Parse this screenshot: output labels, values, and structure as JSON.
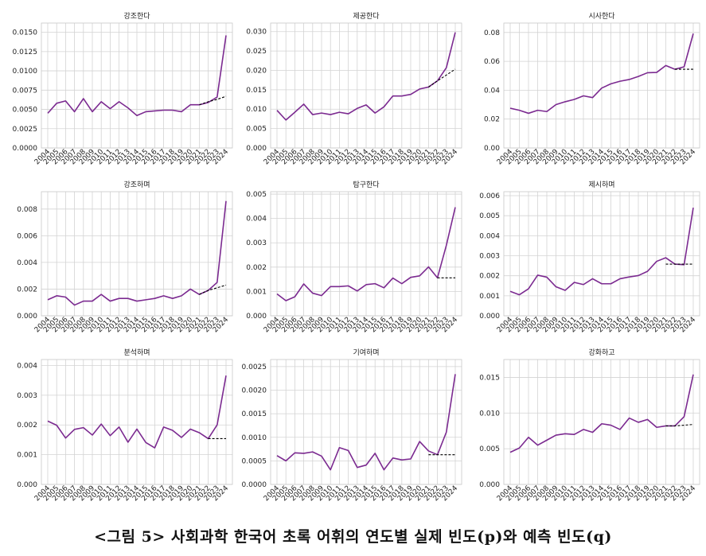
{
  "caption": "<그림 5> 사회과학 한국어 초록 어휘의 연도별 실제 빈도(p)와 예측 빈도(q)",
  "colors": {
    "actual": "#7b2a90",
    "predicted": "#000000",
    "grid": "#d3d3d3",
    "frame": "#c8c8c8"
  },
  "chart_data": [
    {
      "type": "line",
      "title": "강조한다",
      "x": [
        "2004",
        "2005",
        "2006",
        "2007",
        "2008",
        "2009",
        "2010",
        "2011",
        "2012",
        "2013",
        "2014",
        "2015",
        "2016",
        "2017",
        "2018",
        "2019",
        "2020",
        "2021",
        "2022",
        "2023",
        "2024"
      ],
      "ylim": [
        0,
        0.0162
      ],
      "yticks": [
        "0.0000",
        "0.0025",
        "0.0050",
        "0.0075",
        "0.0100",
        "0.0125",
        "0.0150"
      ],
      "series": [
        {
          "style": "solid",
          "values": [
            0.0045,
            0.0058,
            0.0061,
            0.0047,
            0.0064,
            0.0047,
            0.006,
            0.0051,
            0.006,
            0.0052,
            0.0042,
            0.0047,
            0.0048,
            0.0049,
            0.0049,
            0.0047,
            0.0056,
            0.0056,
            0.0059,
            0.0066,
            0.0146
          ]
        },
        {
          "style": "dashed",
          "x": [
            "2021",
            "2022",
            "2023",
            "2024"
          ],
          "values": [
            0.0056,
            0.006,
            0.0063,
            0.0067
          ]
        }
      ]
    },
    {
      "type": "line",
      "title": "제공한다",
      "x": [
        "2004",
        "2005",
        "2006",
        "2007",
        "2008",
        "2009",
        "2010",
        "2011",
        "2012",
        "2013",
        "2014",
        "2015",
        "2016",
        "2017",
        "2018",
        "2019",
        "2020",
        "2021",
        "2022",
        "2023",
        "2024"
      ],
      "ylim": [
        0,
        0.0322
      ],
      "yticks": [
        "0.000",
        "0.005",
        "0.010",
        "0.015",
        "0.020",
        "0.025",
        "0.030"
      ],
      "series": [
        {
          "style": "solid",
          "values": [
            0.0097,
            0.0072,
            0.0092,
            0.0113,
            0.0086,
            0.009,
            0.0086,
            0.0092,
            0.0088,
            0.0102,
            0.0111,
            0.009,
            0.0106,
            0.0134,
            0.0134,
            0.0138,
            0.0152,
            0.0157,
            0.0173,
            0.0207,
            0.0298
          ]
        },
        {
          "style": "dashed",
          "x": [
            "2021",
            "2022",
            "2023",
            "2024"
          ],
          "values": [
            0.0157,
            0.0173,
            0.0188,
            0.0203
          ]
        }
      ]
    },
    {
      "type": "line",
      "title": "시사한다",
      "x": [
        "2004",
        "2005",
        "2006",
        "2007",
        "2008",
        "2009",
        "2010",
        "2011",
        "2012",
        "2013",
        "2014",
        "2015",
        "2016",
        "2017",
        "2018",
        "2019",
        "2020",
        "2021",
        "2022",
        "2023",
        "2024"
      ],
      "ylim": [
        0,
        0.0865
      ],
      "yticks": [
        "0.00",
        "0.02",
        "0.04",
        "0.06",
        "0.08"
      ],
      "series": [
        {
          "style": "solid",
          "values": [
            0.0275,
            0.0261,
            0.024,
            0.0261,
            0.0252,
            0.03,
            0.032,
            0.0336,
            0.0361,
            0.0349,
            0.0415,
            0.0444,
            0.0462,
            0.0474,
            0.0495,
            0.0521,
            0.0523,
            0.0571,
            0.0545,
            0.0562,
            0.0792
          ]
        },
        {
          "style": "dashed",
          "x": [
            "2022",
            "2023",
            "2024"
          ],
          "values": [
            0.0545,
            0.0545,
            0.0545
          ]
        }
      ]
    },
    {
      "type": "line",
      "title": "강조하며",
      "x": [
        "2004",
        "2005",
        "2006",
        "2007",
        "2008",
        "2009",
        "2010",
        "2011",
        "2012",
        "2013",
        "2014",
        "2015",
        "2016",
        "2017",
        "2018",
        "2019",
        "2020",
        "2021",
        "2022",
        "2023",
        "2024"
      ],
      "ylim": [
        0,
        0.0093
      ],
      "yticks": [
        "0.000",
        "0.002",
        "0.004",
        "0.006",
        "0.008"
      ],
      "series": [
        {
          "style": "solid",
          "values": [
            0.0012,
            0.0015,
            0.0014,
            0.0008,
            0.0011,
            0.0011,
            0.0016,
            0.0011,
            0.0013,
            0.0013,
            0.0011,
            0.0012,
            0.0013,
            0.0015,
            0.0013,
            0.0015,
            0.002,
            0.0016,
            0.0019,
            0.0025,
            0.0086
          ]
        },
        {
          "style": "dashed",
          "x": [
            "2021",
            "2022",
            "2023",
            "2024"
          ],
          "values": [
            0.0016,
            0.0019,
            0.0021,
            0.0023
          ]
        }
      ]
    },
    {
      "type": "line",
      "title": "탐구한다",
      "x": [
        "2004",
        "2005",
        "2006",
        "2007",
        "2008",
        "2009",
        "2010",
        "2011",
        "2012",
        "2013",
        "2014",
        "2015",
        "2016",
        "2017",
        "2018",
        "2019",
        "2020",
        "2021",
        "2022",
        "2023",
        "2024"
      ],
      "ylim": [
        0,
        0.0051
      ],
      "yticks": [
        "0.000",
        "0.001",
        "0.002",
        "0.003",
        "0.004",
        "0.005"
      ],
      "series": [
        {
          "style": "solid",
          "values": [
            0.0009,
            0.00062,
            0.00078,
            0.00131,
            0.00093,
            0.00083,
            0.0012,
            0.0012,
            0.00123,
            0.00102,
            0.00128,
            0.00132,
            0.00115,
            0.00155,
            0.00132,
            0.00158,
            0.00164,
            0.00201,
            0.00156,
            0.0029,
            0.00446
          ]
        },
        {
          "style": "dashed",
          "x": [
            "2022",
            "2023",
            "2024"
          ],
          "values": [
            0.00156,
            0.00156,
            0.00156
          ]
        }
      ]
    },
    {
      "type": "line",
      "title": "제시하며",
      "x": [
        "2004",
        "2005",
        "2006",
        "2007",
        "2008",
        "2009",
        "2010",
        "2011",
        "2012",
        "2013",
        "2014",
        "2015",
        "2016",
        "2017",
        "2018",
        "2019",
        "2020",
        "2021",
        "2022",
        "2023",
        "2024"
      ],
      "ylim": [
        0,
        0.0062
      ],
      "yticks": [
        "0.000",
        "0.001",
        "0.002",
        "0.003",
        "0.004",
        "0.005",
        "0.006"
      ],
      "series": [
        {
          "style": "solid",
          "values": [
            0.00122,
            0.00105,
            0.00135,
            0.00203,
            0.00193,
            0.00145,
            0.00127,
            0.00167,
            0.00156,
            0.00185,
            0.0016,
            0.0016,
            0.00185,
            0.00194,
            0.00201,
            0.00222,
            0.00272,
            0.0029,
            0.00258,
            0.00255,
            0.0054
          ]
        },
        {
          "style": "dashed",
          "x": [
            "2021",
            "2022",
            "2023",
            "2024"
          ],
          "values": [
            0.00258,
            0.00258,
            0.00258,
            0.00258
          ]
        }
      ]
    },
    {
      "type": "line",
      "title": "분석하며",
      "x": [
        "2004",
        "2005",
        "2006",
        "2007",
        "2008",
        "2009",
        "2010",
        "2011",
        "2012",
        "2013",
        "2014",
        "2015",
        "2016",
        "2017",
        "2018",
        "2019",
        "2020",
        "2021",
        "2022",
        "2023",
        "2024"
      ],
      "ylim": [
        0,
        0.0042
      ],
      "yticks": [
        "0.000",
        "0.001",
        "0.002",
        "0.003",
        "0.004"
      ],
      "series": [
        {
          "style": "solid",
          "values": [
            0.00213,
            0.00199,
            0.00156,
            0.00185,
            0.00191,
            0.00166,
            0.00203,
            0.00164,
            0.00193,
            0.00142,
            0.00186,
            0.00141,
            0.00123,
            0.00193,
            0.00182,
            0.00158,
            0.00186,
            0.00174,
            0.00154,
            0.002,
            0.00366
          ]
        },
        {
          "style": "dashed",
          "x": [
            "2022",
            "2023",
            "2024"
          ],
          "values": [
            0.00154,
            0.00154,
            0.00154
          ]
        }
      ]
    },
    {
      "type": "line",
      "title": "기여하며",
      "x": [
        "2004",
        "2005",
        "2006",
        "2007",
        "2008",
        "2009",
        "2010",
        "2011",
        "2012",
        "2013",
        "2014",
        "2015",
        "2016",
        "2017",
        "2018",
        "2019",
        "2020",
        "2021",
        "2022",
        "2023",
        "2024"
      ],
      "ylim": [
        0,
        0.00265
      ],
      "yticks": [
        "0.0000",
        "0.0005",
        "0.0010",
        "0.0015",
        "0.0020",
        "0.0025"
      ],
      "series": [
        {
          "style": "solid",
          "values": [
            0.00061,
            0.0005,
            0.00067,
            0.00066,
            0.00069,
            0.0006,
            0.00031,
            0.00078,
            0.00072,
            0.00036,
            0.00041,
            0.00066,
            0.00031,
            0.00056,
            0.00052,
            0.00054,
            0.00091,
            0.00071,
            0.00063,
            0.00111,
            0.00234
          ]
        },
        {
          "style": "dashed",
          "x": [
            "2021",
            "2022",
            "2023",
            "2024"
          ],
          "values": [
            0.00063,
            0.00063,
            0.00063,
            0.00063
          ]
        }
      ]
    },
    {
      "type": "line",
      "title": "강화하고",
      "x": [
        "2004",
        "2005",
        "2006",
        "2007",
        "2008",
        "2009",
        "2010",
        "2011",
        "2012",
        "2013",
        "2014",
        "2015",
        "2016",
        "2017",
        "2018",
        "2019",
        "2020",
        "2021",
        "2022",
        "2023",
        "2024"
      ],
      "ylim": [
        0,
        0.0175
      ],
      "yticks": [
        "0.000",
        "0.005",
        "0.010",
        "0.015"
      ],
      "series": [
        {
          "style": "solid",
          "values": [
            0.0045,
            0.0051,
            0.0066,
            0.0055,
            0.0062,
            0.0069,
            0.0071,
            0.007,
            0.0077,
            0.0073,
            0.0085,
            0.0083,
            0.0077,
            0.0093,
            0.0087,
            0.0091,
            0.008,
            0.0082,
            0.0082,
            0.0095,
            0.0154
          ]
        },
        {
          "style": "dashed",
          "x": [
            "2021",
            "2022",
            "2023",
            "2024"
          ],
          "values": [
            0.0082,
            0.0082,
            0.0083,
            0.0084
          ]
        }
      ]
    }
  ]
}
